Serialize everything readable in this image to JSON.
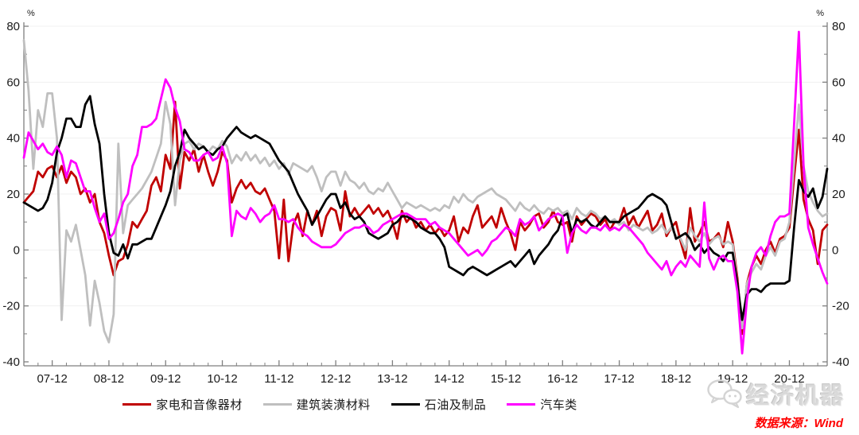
{
  "axes": {
    "y_unit": "%",
    "y_ticks": [
      80,
      60,
      40,
      20,
      0,
      -20,
      -40
    ],
    "y_minor_ticks": [
      70,
      50,
      30,
      10,
      -10,
      -30
    ],
    "x_tick_labels": [
      "07-12",
      "08-12",
      "09-12",
      "10-12",
      "11-12",
      "12-12",
      "13-12",
      "14-12",
      "15-12",
      "16-12",
      "17-12",
      "18-12",
      "19-12",
      "20-12"
    ]
  },
  "legend": [
    {
      "label": "家电和音像器材",
      "color": "#c00000"
    },
    {
      "label": "建筑装潢材料",
      "color": "#bfbfbf"
    },
    {
      "label": "石油及制品",
      "color": "#000000"
    },
    {
      "label": "汽车类",
      "color": "#ff00ff"
    }
  ],
  "watermark": {
    "brand": "经济机器",
    "source": "数据来源：Wind"
  },
  "chart_data": {
    "type": "line",
    "title": "",
    "x_start": "2007-06",
    "x_end": "2021-08",
    "frequency": "monthly",
    "ylim": [
      -41.5,
      81.5
    ],
    "y_unit": "%",
    "grid": "horizontal-light",
    "legend_position": "bottom-center",
    "x_tick_labels": [
      "07-12",
      "08-12",
      "09-12",
      "10-12",
      "11-12",
      "12-12",
      "13-12",
      "14-12",
      "15-12",
      "16-12",
      "17-12",
      "18-12",
      "19-12",
      "20-12"
    ],
    "x_tick_first_index": 6,
    "x_tick_step_months": 12,
    "series": [
      {
        "name": "家电和音像器材",
        "color": "#c00000",
        "values": [
          17,
          19,
          21,
          28,
          26,
          29,
          30,
          26,
          30,
          24,
          28,
          26,
          20,
          22,
          17,
          20,
          10,
          6,
          -2,
          -9,
          -4,
          -3,
          2,
          10,
          8,
          11,
          14,
          23,
          26,
          21,
          34,
          29,
          53,
          22,
          35,
          32,
          36,
          28,
          34,
          28,
          23,
          28,
          35,
          32,
          17,
          22,
          25,
          22,
          24,
          21,
          20,
          22,
          18,
          14,
          -3,
          18,
          -4,
          9,
          13,
          5,
          14,
          9,
          14,
          5,
          12,
          15,
          14,
          7,
          21,
          12,
          15,
          12,
          14,
          16,
          13,
          15,
          12,
          14,
          10,
          4,
          14,
          10,
          12,
          8,
          10,
          7,
          9,
          6,
          8,
          5,
          7,
          12,
          3,
          8,
          6,
          12,
          16,
          8,
          10,
          12,
          8,
          15,
          10,
          6,
          0,
          10,
          7,
          9,
          12,
          13,
          8,
          10,
          14,
          10,
          9,
          10,
          3,
          12,
          9,
          11,
          13,
          12,
          9,
          11,
          7,
          10,
          10,
          15,
          9,
          12,
          8,
          11,
          14,
          7,
          9,
          13,
          5,
          8,
          10,
          3,
          -3,
          15,
          3,
          6,
          10,
          3,
          4,
          6,
          1,
          10,
          3,
          -10,
          -30,
          -12,
          -6,
          -2,
          -5,
          0,
          3,
          -1,
          4,
          5,
          8,
          26,
          43,
          18,
          11,
          7,
          -5,
          7,
          9
        ]
      },
      {
        "name": "建筑装潢材料",
        "color": "#bfbfbf",
        "values": [
          75,
          57,
          29,
          50,
          44,
          56,
          56,
          40,
          -25,
          7,
          3,
          9,
          0,
          -9,
          -27,
          -11,
          -19,
          -29,
          -33,
          -23,
          38,
          6,
          16,
          18,
          20,
          22,
          25,
          28,
          33,
          38,
          53,
          45,
          16,
          32,
          38,
          39,
          36,
          38,
          37,
          35,
          37,
          36,
          39,
          37,
          31,
          34,
          32,
          35,
          32,
          34,
          31,
          33,
          30,
          32,
          29,
          31,
          27,
          31,
          30,
          29,
          28,
          30,
          26,
          21,
          26,
          28,
          28,
          23,
          28,
          25,
          24,
          22,
          24,
          21,
          20,
          22,
          21,
          24,
          21,
          18,
          15,
          17,
          16,
          15,
          16,
          15,
          14,
          15,
          14,
          16,
          15,
          19,
          17,
          20,
          18,
          17,
          19,
          20,
          21,
          22,
          20,
          19,
          18,
          16,
          14,
          17,
          15,
          14,
          16,
          14,
          13,
          15,
          14,
          15,
          13,
          14,
          11,
          15,
          13,
          12,
          14,
          13,
          11,
          12,
          10,
          11,
          9,
          10,
          7,
          9,
          8,
          7,
          8,
          6,
          7,
          9,
          6,
          8,
          5,
          4,
          0,
          8,
          5,
          3,
          6,
          2,
          4,
          5,
          2,
          3,
          2,
          -12,
          -28,
          -12,
          -8,
          -5,
          -7,
          -2,
          1,
          -2,
          3,
          4,
          10,
          31,
          52,
          30,
          21,
          17,
          14,
          12,
          13
        ]
      },
      {
        "name": "石油及制品",
        "color": "#000000",
        "values": [
          17,
          16,
          15,
          14,
          15,
          18,
          24,
          35,
          40,
          47,
          47,
          44,
          44,
          52,
          55,
          45,
          38,
          20,
          6,
          -1,
          -2,
          2,
          -3,
          2,
          2,
          3,
          4,
          4,
          8,
          12,
          16,
          21,
          30,
          35,
          43,
          40,
          38,
          36,
          37,
          35,
          34,
          36,
          37,
          40,
          42,
          44,
          42,
          41,
          40,
          41,
          40,
          39,
          38,
          35,
          32,
          30,
          28,
          24,
          20,
          17,
          14,
          9,
          12,
          15,
          18,
          20,
          20,
          15,
          17,
          13,
          11,
          12,
          10,
          6,
          5,
          4,
          5,
          6,
          9,
          10,
          12,
          12,
          11,
          10,
          8,
          7,
          6,
          6,
          4,
          1,
          -6,
          -7,
          -8,
          -9,
          -7,
          -6,
          -7,
          -8,
          -9,
          -8,
          -7,
          -6,
          -5,
          -4,
          -6,
          -4,
          -2,
          0,
          -5,
          -2,
          0,
          2,
          5,
          7,
          12,
          13,
          6,
          11,
          10,
          11,
          9,
          8,
          10,
          12,
          10,
          10,
          10,
          12,
          13,
          14,
          15,
          17,
          19,
          20,
          19,
          18,
          16,
          10,
          4,
          5,
          6,
          4,
          0,
          2,
          -1,
          1,
          -1,
          -2,
          -4,
          -1,
          -1,
          -12,
          -25,
          -16,
          -14,
          -14,
          -15,
          -13,
          -12,
          -12,
          -12,
          -12,
          -11,
          8,
          25,
          21,
          19,
          22,
          15,
          19,
          29
        ]
      },
      {
        "name": "汽车类",
        "color": "#ff00ff",
        "values": [
          33,
          42,
          39,
          36,
          38,
          35,
          34,
          37,
          34,
          26,
          32,
          31,
          26,
          21,
          21,
          15,
          10,
          13,
          4,
          6,
          11,
          17,
          20,
          30,
          34,
          44,
          44,
          45,
          47,
          54,
          61,
          58,
          51,
          46,
          36,
          35,
          32,
          32,
          34,
          35,
          32,
          33,
          37,
          31,
          5,
          14,
          12,
          11,
          15,
          13,
          10,
          12,
          13,
          16,
          11,
          11,
          10,
          11,
          8,
          6,
          5,
          3,
          2,
          1,
          1,
          1,
          2,
          4,
          6,
          7,
          8,
          8,
          9,
          8,
          6,
          7,
          9,
          10,
          11,
          12,
          13,
          13,
          12,
          11,
          11,
          11,
          9,
          10,
          8,
          7,
          6,
          4,
          2,
          0,
          -2,
          -1,
          0,
          -2,
          0,
          3,
          4,
          6,
          8,
          7,
          5,
          11,
          9,
          10,
          12,
          7,
          9,
          11,
          12,
          13,
          12,
          -1,
          6,
          9,
          7,
          6,
          8,
          8,
          7,
          9,
          7,
          8,
          7,
          9,
          8,
          6,
          4,
          2,
          -1,
          -3,
          -5,
          -7,
          -4,
          -9,
          -6,
          -4,
          -6,
          -2,
          -4,
          -6,
          17,
          -3,
          -7,
          -3,
          -2,
          -4,
          -4,
          -15,
          -37,
          -18,
          -6,
          -1,
          1,
          -2,
          5,
          10,
          12,
          12,
          13,
          45,
          78,
          30,
          8,
          2,
          -3,
          -8,
          -12
        ]
      }
    ]
  }
}
